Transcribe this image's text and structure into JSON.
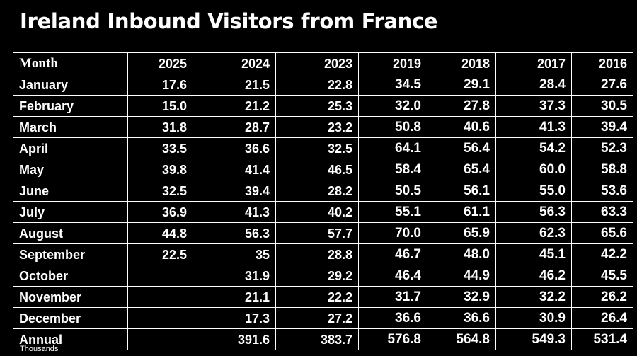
{
  "title": "Ireland Inbound Visitors from France",
  "note": "Thousands",
  "chart_data": {
    "type": "table",
    "title": "Ireland Inbound Visitors from France",
    "unit_note": "Thousands",
    "row_header_label": "Month",
    "columns": [
      "2025",
      "2024",
      "2023",
      "2019",
      "2018",
      "2017",
      "2016"
    ],
    "rows": [
      {
        "label": "January",
        "values": [
          "17.6",
          "21.5",
          "22.8",
          "34.5",
          "29.1",
          "28.4",
          "27.6"
        ]
      },
      {
        "label": "February",
        "values": [
          "15.0",
          "21.2",
          "25.3",
          "32.0",
          "27.8",
          "37.3",
          "30.5"
        ]
      },
      {
        "label": "March",
        "values": [
          "31.8",
          "28.7",
          "23.2",
          "50.8",
          "40.6",
          "41.3",
          "39.4"
        ]
      },
      {
        "label": "April",
        "values": [
          "33.5",
          "36.6",
          "32.5",
          "64.1",
          "56.4",
          "54.2",
          "52.3"
        ]
      },
      {
        "label": "May",
        "values": [
          "39.8",
          "41.4",
          "46.5",
          "58.4",
          "65.4",
          "60.0",
          "58.8"
        ]
      },
      {
        "label": "June",
        "values": [
          "32.5",
          "39.4",
          "28.2",
          "50.5",
          "56.1",
          "55.0",
          "53.6"
        ]
      },
      {
        "label": "July",
        "values": [
          "36.9",
          "41.3",
          "40.2",
          "55.1",
          "61.1",
          "56.3",
          "63.3"
        ]
      },
      {
        "label": "August",
        "values": [
          "44.8",
          "56.3",
          "57.7",
          "70.0",
          "65.9",
          "62.3",
          "65.6"
        ]
      },
      {
        "label": "September",
        "values": [
          "22.5",
          "35",
          "28.8",
          "46.7",
          "48.0",
          "45.1",
          "42.2"
        ]
      },
      {
        "label": "October",
        "values": [
          "",
          "31.9",
          "29.2",
          "46.4",
          "44.9",
          "46.2",
          "45.5"
        ]
      },
      {
        "label": "November",
        "values": [
          "",
          "21.1",
          "22.2",
          "31.7",
          "32.9",
          "32.2",
          "26.2"
        ]
      },
      {
        "label": "December",
        "values": [
          "",
          "17.3",
          "27.2",
          "36.6",
          "36.6",
          "30.9",
          "26.4"
        ]
      },
      {
        "label": "Annual",
        "values": [
          "",
          "391.6",
          "383.7",
          "576.8",
          "564.8",
          "549.3",
          "531.4"
        ]
      }
    ]
  }
}
